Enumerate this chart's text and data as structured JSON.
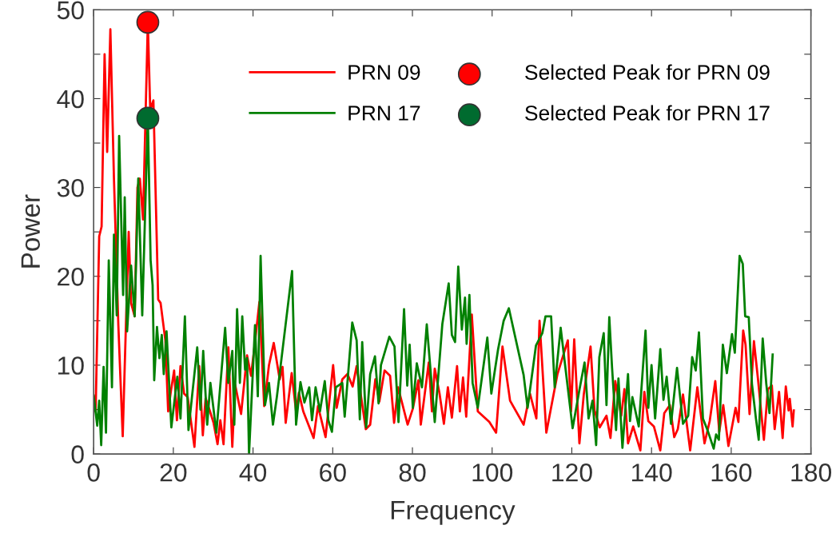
{
  "chart_data": {
    "type": "line",
    "xlabel": "Frequency",
    "ylabel": "Power",
    "xlim": [
      0,
      180
    ],
    "xticks": [
      0,
      20,
      40,
      60,
      80,
      100,
      120,
      140,
      160,
      180
    ],
    "ylim": [
      0,
      50
    ],
    "yticks": [
      0,
      {
        "value": 5,
        "label": null
      },
      10,
      {
        "value": 15,
        "label": null
      },
      20,
      {
        "value": 25,
        "label": null
      },
      30,
      {
        "value": 35,
        "label": null
      },
      40,
      {
        "value": 45,
        "label": null
      },
      50
    ],
    "grid": false,
    "legend": "top right",
    "marker": "none",
    "line_style": "solid",
    "series": [
      {
        "name": "PRN 09",
        "color": "#ff0000",
        "x": [
          0,
          0.5,
          1.4,
          2.0,
          2.75,
          3.4,
          4.2,
          5.1,
          6.2,
          7.3,
          8.1,
          8.8,
          9.4,
          10.3,
          11.0,
          11.6,
          12.4,
          13.6,
          14.2,
          15.0,
          16.2,
          16.8,
          18.0,
          18.7,
          19.4,
          20.2,
          20.9,
          21.8,
          22.7,
          23.6,
          25.3,
          26.5,
          27.4,
          28.1,
          29.2,
          30.1,
          31.1,
          31.8,
          32.6,
          33.8,
          34.8,
          35.5,
          37.0,
          38.5,
          39.5,
          40.4,
          41.6,
          42.8,
          44.0,
          45.2,
          46.7,
          47.4,
          48.2,
          49.7,
          50.8,
          51.5,
          52.6,
          55.2,
          56.3,
          58.2,
          60.1,
          61.0,
          62.4,
          63.7,
          65.0,
          66.0,
          68.3,
          69.4,
          70.7,
          71.7,
          73.0,
          74.4,
          75.4,
          76.4,
          78.8,
          80.1,
          81.5,
          82.1,
          84.1,
          84.9,
          85.6,
          86.8,
          87.9,
          88.9,
          89.9,
          91.2,
          91.9,
          92.7,
          93.5,
          94.9,
          96.4,
          99.3,
          101.0,
          102.6,
          104.5,
          107.9,
          109.5,
          111.1,
          111.9,
          113.6,
          116.4,
          119.0,
          119.8,
          120.6,
          121.9,
          123.0,
          124.7,
          125.7,
          127.0,
          128.7,
          129.7,
          130.9,
          132.4,
          133.2,
          134.1,
          135.4,
          137.2,
          138.2,
          139.2,
          140.6,
          142.2,
          143.2,
          144.6,
          145.7,
          146.6,
          147.9,
          149.7,
          151.5,
          153.3,
          154.6,
          156.0,
          157.0,
          158.0,
          159.3,
          161.1,
          161.8,
          163.0,
          163.6,
          164.6,
          165.7,
          166.7,
          168.2,
          169.2,
          170.2,
          170.9,
          172.0,
          172.9,
          173.7,
          174.4,
          174.7,
          175.4,
          175.7
        ],
        "values": [
          6.5,
          4.8,
          24.5,
          25.6,
          45,
          34,
          47.8,
          31,
          14.5,
          2,
          14.5,
          25,
          17,
          15.5,
          30,
          31,
          26.4,
          48.6,
          38.8,
          39.8,
          17.4,
          17,
          12.8,
          4.8,
          7.1,
          9.4,
          3.8,
          9.9,
          6.8,
          6.4,
          0.8,
          9.9,
          2.1,
          6.3,
          4.8,
          3.5,
          1.1,
          3.8,
          1.1,
          12.0,
          0.8,
          7.8,
          4.5,
          11.1,
          8.8,
          12.2,
          17.1,
          5.4,
          10.0,
          12.5,
          8.4,
          9.8,
          3.5,
          9.1,
          4.8,
          6.9,
          4.8,
          1.8,
          5.4,
          1.9,
          10.0,
          5.2,
          8.4,
          9.0,
          7.6,
          9.9,
          2.8,
          3.3,
          8.4,
          5.9,
          9.4,
          8.8,
          3.5,
          7.5,
          3.3,
          5.1,
          8.3,
          3.3,
          10.3,
          4.8,
          9.6,
          6.8,
          3.4,
          7.5,
          4.1,
          9.9,
          4.8,
          8.6,
          4.2,
          15.7,
          4.8,
          3.6,
          2.4,
          12.1,
          6.0,
          3.3,
          6.8,
          4.0,
          15.0,
          2.4,
          9.0,
          12.8,
          4.8,
          12.9,
          1.2,
          6.7,
          12.1,
          4.9,
          3.0,
          4.3,
          1.8,
          8.2,
          4.3,
          7.3,
          1.2,
          3.1,
          0.4,
          7.0,
          3.7,
          3.1,
          0.4,
          4.6,
          5.5,
          1.9,
          2.8,
          6.7,
          0.4,
          7.5,
          1.2,
          3.7,
          8.2,
          2.5,
          5.5,
          0.9,
          5.2,
          3.6,
          13.9,
          12.3,
          4.5,
          12.7,
          8.5,
          1.6,
          7.3,
          7.7,
          2.8,
          7.0,
          1.8,
          7.6,
          4.9,
          6.2,
          3.1,
          4.9
        ]
      },
      {
        "name": "PRN 17",
        "color": "#008000",
        "x": [
          0,
          0.9,
          1.4,
          1.9,
          2.5,
          3.1,
          3.8,
          4.6,
          5.1,
          5.8,
          6.4,
          7.4,
          7.8,
          8.4,
          9.4,
          10.3,
          11.2,
          12.2,
          13.6,
          14.3,
          14.8,
          15.2,
          15.9,
          16.5,
          17.1,
          17.6,
          18.3,
          19.5,
          21.0,
          21.8,
          22.9,
          23.8,
          26.0,
          26.8,
          27.5,
          28.5,
          29.3,
          30.8,
          33.0,
          33.8,
          34.8,
          35.3,
          36.0,
          36.7,
          37.3,
          38.0,
          38.5,
          39.0,
          40.5,
          41.2,
          41.9,
          43.0,
          44.0,
          45.0,
          46.0,
          49.8,
          50.8,
          51.9,
          52.9,
          54.1,
          54.8,
          55.7,
          56.8,
          58.0,
          58.9,
          59.8,
          60.8,
          62.4,
          63.0,
          64.9,
          66.0,
          66.8,
          67.4,
          68.4,
          69.4,
          70.6,
          71.5,
          72.1,
          74.2,
          75.5,
          76.5,
          77.9,
          78.7,
          79.3,
          80.1,
          81.1,
          82.4,
          83.6,
          85.6,
          87.5,
          89.1,
          89.9,
          90.7,
          91.5,
          92.4,
          93.2,
          93.6,
          94.3,
          95.1,
          96.4,
          98.8,
          99.8,
          101.5,
          102.9,
          104.2,
          107.9,
          108.9,
          111.0,
          112.6,
          113.4,
          114.8,
          115.7,
          117.2,
          120.2,
          121.9,
          123.2,
          124.2,
          125.2,
          126.1,
          126.9,
          128.0,
          128.7,
          129.4,
          130.1,
          131.1,
          131.7,
          132.7,
          134.1,
          134.6,
          135.2,
          136.8,
          138.5,
          139.2,
          140.0,
          140.9,
          142.2,
          143.0,
          143.8,
          144.9,
          146.4,
          147.9,
          149.2,
          150.2,
          151.1,
          151.9,
          152.9,
          154.2,
          155.6,
          156.2,
          156.9,
          157.9,
          158.9,
          160.2,
          160.9,
          162.1,
          162.9,
          163.5,
          164.4,
          165.2,
          166.2,
          166.9,
          167.9,
          168.8,
          169.6,
          170.4
        ],
        "values": [
          6.6,
          3.2,
          6,
          1,
          9.8,
          2.4,
          21.8,
          7.5,
          24.7,
          15.6,
          35.8,
          17.9,
          28.9,
          13.8,
          21.2,
          15.5,
          31,
          15.6,
          38,
          21.8,
          19,
          8.3,
          14.3,
          10.8,
          13.4,
          9,
          13.8,
          3,
          8.7,
          4,
          15.5,
          2.7,
          12,
          5,
          11.6,
          3.3,
          8,
          2.4,
          14.2,
          8,
          11.6,
          3.3,
          16.3,
          8,
          15.5,
          9.5,
          10.8,
          0,
          14.5,
          6.5,
          22.3,
          5.5,
          8,
          3.3,
          6.5,
          20.6,
          3.3,
          8.1,
          5.8,
          7.5,
          3.8,
          7.5,
          4.8,
          8.2,
          3.8,
          2.5,
          7.5,
          8,
          4.2,
          14.8,
          12.8,
          3.9,
          12.6,
          3,
          9,
          11,
          5.7,
          10,
          13.2,
          12.1,
          3.6,
          16.3,
          7.7,
          12.3,
          5.2,
          10.2,
          7.5,
          14.6,
          3.6,
          14.6,
          19.2,
          13.4,
          12.6,
          21.1,
          14,
          17.6,
          12.4,
          17.9,
          8,
          5.2,
          13.1,
          6.8,
          11.8,
          15,
          16.4,
          8.9,
          5.2,
          12.2,
          13.6,
          15.5,
          15.5,
          7.5,
          14.2,
          2.9,
          7.2,
          10.3,
          4.0,
          6.0,
          1.0,
          10.9,
          13.6,
          5.5,
          15.4,
          9.7,
          2.7,
          8.5,
          0.7,
          9.0,
          3.7,
          6.4,
          3.1,
          13.9,
          5.2,
          10.0,
          4.0,
          11.8,
          6.1,
          8.7,
          3.4,
          9.7,
          3.4,
          4.3,
          10.9,
          9.4,
          13.7,
          4.0,
          2.5,
          0.6,
          2.2,
          1.6,
          12.3,
          9.1,
          13.5,
          11.4,
          22.3,
          21.4,
          15.5,
          15.4,
          7.9,
          4.0,
          1.6,
          13.0,
          7.9,
          4.6,
          11.2
        ]
      },
      {
        "name": "Selected Peak for PRN 09",
        "color": "#ff0000",
        "type": "scatter",
        "marker": "circle",
        "x": [
          13.6
        ],
        "values": [
          48.6
        ]
      },
      {
        "name": "Selected Peak for PRN 17",
        "color": "#006b2f",
        "type": "scatter",
        "marker": "circle",
        "x": [
          13.6
        ],
        "values": [
          37.8
        ]
      }
    ]
  }
}
